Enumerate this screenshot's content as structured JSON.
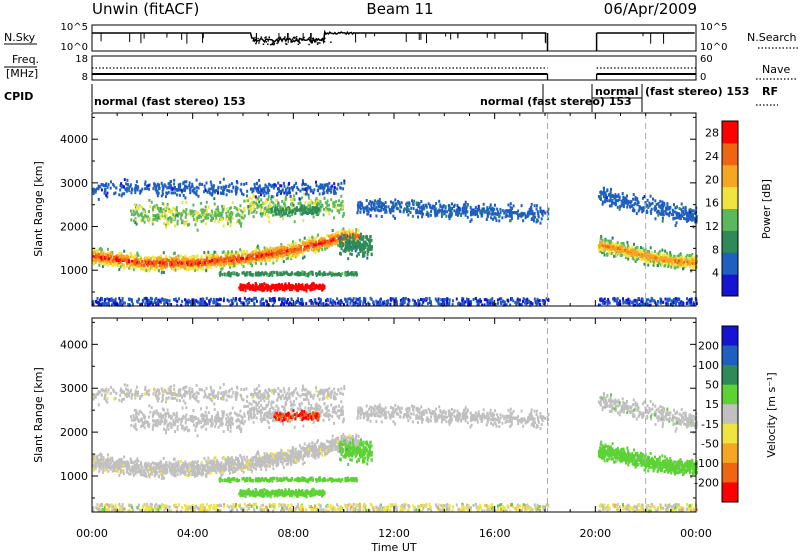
{
  "header": {
    "title": "Unwin (fitACF)",
    "beam": "Beam 11",
    "date": "06/Apr/2009"
  },
  "strips": {
    "nsky_label": "N.Sky",
    "nsearch_label": "N.Search",
    "freq_label": "Freq.",
    "freq_unit": "[MHz]",
    "nave_label": "Nave",
    "cpid_label": "CPID",
    "rf_label": "RF",
    "nsky_ticks": [
      "10^5",
      "10^0"
    ],
    "nsearch_ticks": [
      "10^5",
      "10^0"
    ],
    "freq_ticks": [
      "18",
      "8"
    ],
    "nave_ticks": [
      "60",
      "0"
    ],
    "cpid_segments": [
      {
        "text": "normal (fast stereo) 153"
      },
      {
        "text": "normal (fast stereo) 153"
      },
      {
        "text": "normal"
      },
      {
        "text": "(fast stereo) 153"
      }
    ]
  },
  "colors": {
    "power": [
      "#1414d2",
      "#1f5fbf",
      "#2e8b57",
      "#5cb85c",
      "#f0e442",
      "#f5a623",
      "#ee6611",
      "#ff0000"
    ],
    "velocity": [
      "#1414d2",
      "#1f5fbf",
      "#2e8b57",
      "#5cd235",
      "#c0c0c0",
      "#f0e442",
      "#f5a623",
      "#ee6611",
      "#ff0000"
    ]
  },
  "chart_data": [
    {
      "type": "heatmap",
      "name": "power",
      "xlabel": "Time UT",
      "ylabel": "Slant Range [km]",
      "x_ticks": [
        "00:00",
        "04:00",
        "08:00",
        "12:00",
        "16:00",
        "20:00",
        "00:00"
      ],
      "xlim_hours": [
        0,
        24
      ],
      "y_ticks": [
        "1000",
        "2000",
        "3000",
        "4000"
      ],
      "y_tick_values": [
        1000,
        2000,
        3000,
        4000
      ],
      "ylim": [
        180,
        4600
      ],
      "data_gap_hours": [
        18.1,
        20.05
      ],
      "colorbar": {
        "label": "Power [dB]",
        "ticks": [
          "4",
          "8",
          "12",
          "16",
          "20",
          "24",
          "28"
        ],
        "range": [
          0,
          30
        ]
      },
      "features": [
        {
          "desc": "main band",
          "t": [
            0,
            2,
            4,
            6,
            8,
            10
          ],
          "range": [
            1350,
            1200,
            1200,
            1300,
            1500,
            1800
          ]
        },
        {
          "desc": "late band",
          "t": [
            20.2,
            21,
            22,
            23,
            24
          ],
          "range": [
            1600,
            1500,
            1350,
            1250,
            1200
          ]
        }
      ]
    },
    {
      "type": "heatmap",
      "name": "velocity",
      "xlabel": "Time UT",
      "ylabel": "Slant Range [km]",
      "x_ticks": [
        "00:00",
        "04:00",
        "08:00",
        "12:00",
        "16:00",
        "20:00",
        "00:00"
      ],
      "xlim_hours": [
        0,
        24
      ],
      "y_ticks": [
        "1000",
        "2000",
        "3000",
        "4000"
      ],
      "y_tick_values": [
        1000,
        2000,
        3000,
        4000
      ],
      "ylim": [
        180,
        4600
      ],
      "data_gap_hours": [
        18.1,
        20.05
      ],
      "colorbar": {
        "label": "Velocity [m s⁻¹]",
        "ticks": [
          "200",
          "100",
          "50",
          "15",
          "-15",
          "-50",
          "-100",
          "-200"
        ],
        "range": [
          -250,
          250
        ]
      }
    }
  ]
}
